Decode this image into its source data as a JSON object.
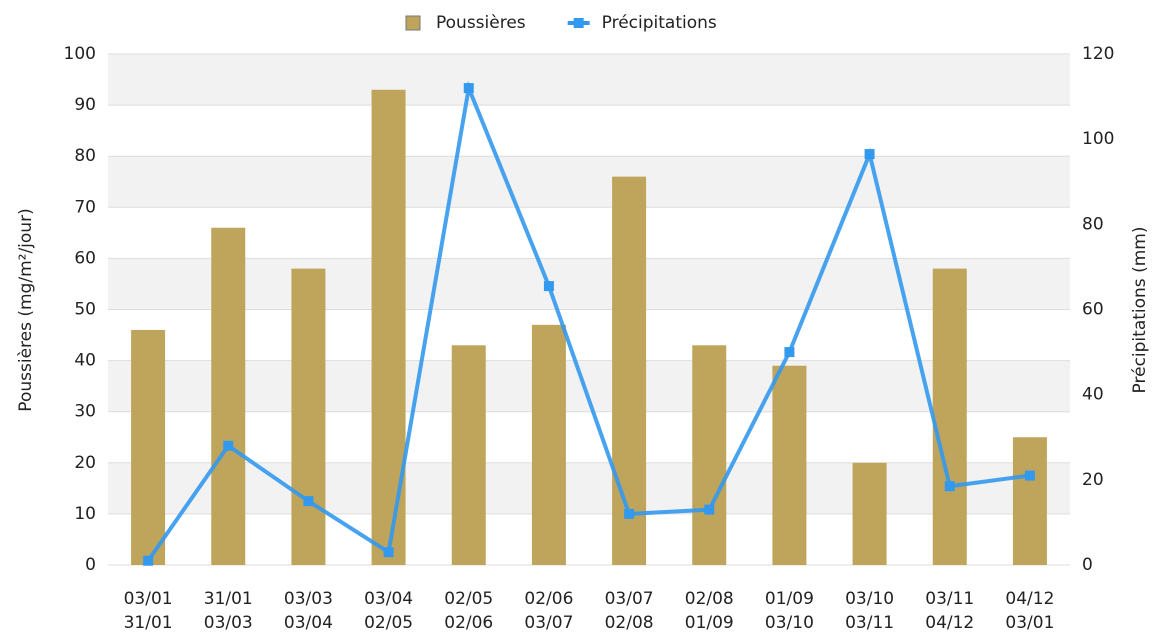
{
  "chart_data": {
    "type": "bar_line",
    "categories": [
      [
        "03/01",
        "31/01"
      ],
      [
        "31/01",
        "03/03"
      ],
      [
        "03/03",
        "03/04"
      ],
      [
        "03/04",
        "02/05"
      ],
      [
        "02/05",
        "02/06"
      ],
      [
        "02/06",
        "03/07"
      ],
      [
        "03/07",
        "02/08"
      ],
      [
        "02/08",
        "01/09"
      ],
      [
        "01/09",
        "03/10"
      ],
      [
        "03/10",
        "03/11"
      ],
      [
        "03/11",
        "04/12"
      ],
      [
        "04/12",
        "03/01"
      ]
    ],
    "series": [
      {
        "name": "Poussières",
        "type": "bar",
        "color": "#bfa55c",
        "values": [
          46,
          66,
          58,
          93,
          43,
          47,
          76,
          43,
          39,
          20,
          58,
          25
        ]
      },
      {
        "name": "Précipitations",
        "type": "line",
        "axis": "y2",
        "color": "#3399ee",
        "values": [
          1,
          28,
          15,
          3,
          112,
          65.5,
          12,
          13,
          50,
          96.5,
          18.5,
          21
        ]
      }
    ],
    "ylabel": "Poussières (mg/m²/jour)",
    "y2label": "Précipitations (mm)",
    "ylim": [
      0,
      100
    ],
    "yticks": [
      0,
      10,
      20,
      30,
      40,
      50,
      60,
      70,
      80,
      90,
      100
    ],
    "y2lim": [
      0,
      120
    ],
    "y2ticks": [
      0,
      20,
      40,
      60,
      80,
      100,
      120
    ],
    "grid": true,
    "legend": "top"
  }
}
